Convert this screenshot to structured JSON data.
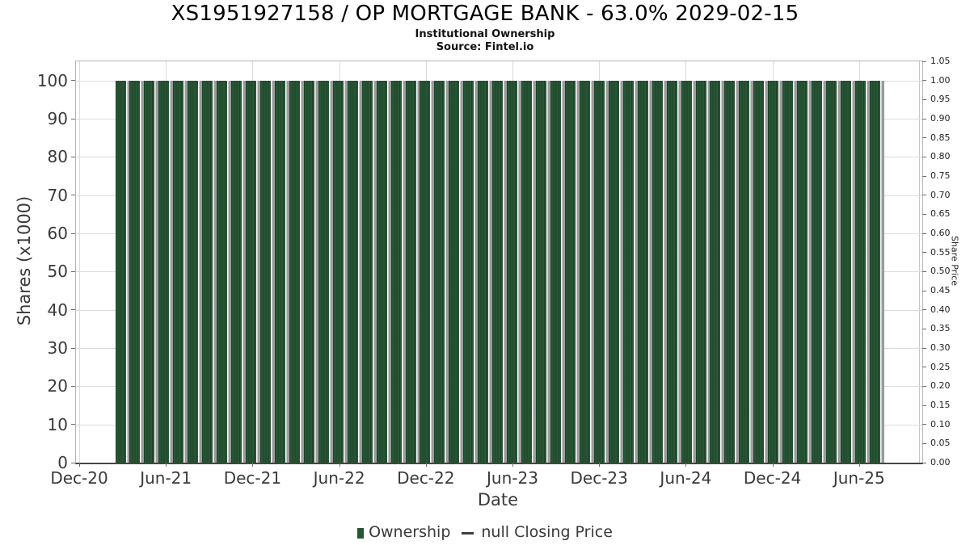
{
  "header": {
    "title": "XS1951927158 / OP MORTGAGE BANK - 63.0% 2029-02-15",
    "subtitle": "Institutional Ownership",
    "source": "Source: Fintel.io"
  },
  "chart_data": {
    "type": "bar",
    "title": "XS1951927158 / OP MORTGAGE BANK - 63.0% 2029-02-15",
    "subtitle": "Institutional Ownership",
    "source": "Source: Fintel.io",
    "xlabel": "Date",
    "ylabel_left": "Shares (x1000)",
    "ylabel_right": "Share Price",
    "ylim_left": [
      0,
      105
    ],
    "ylim_right": [
      0,
      1.05
    ],
    "grid": true,
    "legend_position": "bottom",
    "x_tick_labels": [
      "Dec-20",
      "Jun-21",
      "Dec-21",
      "Jun-22",
      "Dec-22",
      "Jun-23",
      "Dec-23",
      "Jun-24",
      "Dec-24",
      "Jun-25"
    ],
    "y_left_ticks": [
      0,
      10,
      20,
      30,
      40,
      50,
      60,
      70,
      80,
      90,
      100
    ],
    "y_right_ticks": [
      "0.00",
      "0.05",
      "0.10",
      "0.15",
      "0.20",
      "0.25",
      "0.30",
      "0.35",
      "0.40",
      "0.45",
      "0.50",
      "0.55",
      "0.60",
      "0.65",
      "0.70",
      "0.75",
      "0.80",
      "0.85",
      "0.90",
      "0.95",
      "1.00",
      "1.05"
    ],
    "categories": [
      "Mar-21",
      "Apr-21",
      "May-21",
      "Jun-21",
      "Jul-21",
      "Aug-21",
      "Sep-21",
      "Oct-21",
      "Nov-21",
      "Dec-21",
      "Jan-22",
      "Feb-22",
      "Mar-22",
      "Apr-22",
      "May-22",
      "Jun-22",
      "Jul-22",
      "Aug-22",
      "Sep-22",
      "Oct-22",
      "Nov-22",
      "Dec-22",
      "Jan-23",
      "Feb-23",
      "Mar-23",
      "Apr-23",
      "May-23",
      "Jun-23",
      "Jul-23",
      "Aug-23",
      "Sep-23",
      "Oct-23",
      "Nov-23",
      "Dec-23",
      "Jan-24",
      "Feb-24",
      "Mar-24",
      "Apr-24",
      "May-24",
      "Jun-24",
      "Jul-24",
      "Aug-24",
      "Sep-24",
      "Oct-24",
      "Nov-24",
      "Dec-24",
      "Jan-25",
      "Feb-25",
      "Mar-25",
      "Apr-25",
      "May-25",
      "Jun-25",
      "Jul-25"
    ],
    "series": [
      {
        "name": "Ownership",
        "type": "bar",
        "color": "#275635",
        "values": [
          100,
          100,
          100,
          100,
          100,
          100,
          100,
          100,
          100,
          100,
          100,
          100,
          100,
          100,
          100,
          100,
          100,
          100,
          100,
          100,
          100,
          100,
          100,
          100,
          100,
          100,
          100,
          100,
          100,
          100,
          100,
          100,
          100,
          100,
          100,
          100,
          100,
          100,
          100,
          100,
          100,
          100,
          100,
          100,
          100,
          100,
          100,
          100,
          100,
          100,
          100,
          100,
          100
        ]
      },
      {
        "name": "null Closing Price",
        "type": "line",
        "color": "#3f3f3f",
        "values": []
      }
    ]
  },
  "legend": {
    "ownership_label": "Ownership",
    "price_label": "null Closing Price",
    "ownership_color": "#275635",
    "price_color": "#3f3f3f"
  },
  "colors": {
    "bar_green": "#275635",
    "bar_stripe": "rgba(0,0,0,0.22)",
    "bar_shadow_gray": "#9c9c9c",
    "gridline": "#dcdcdc",
    "axis_text": "#3a3a3a",
    "spine": "#b3b3b3",
    "bottom_spine": "#454545"
  }
}
